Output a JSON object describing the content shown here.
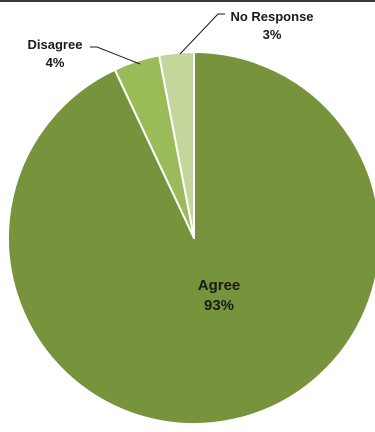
{
  "chart_data": {
    "type": "pie",
    "title": "",
    "start_angle_deg": 0,
    "direction": "clockwise",
    "slices": [
      {
        "label": "Agree",
        "value": 93,
        "value_label": "93%",
        "color": "#77933c"
      },
      {
        "label": "Disagree",
        "value": 4,
        "value_label": "4%",
        "color": "#9bbb59"
      },
      {
        "label": "No Response",
        "value": 3,
        "value_label": "3%",
        "color": "#c3d69b"
      }
    ]
  }
}
